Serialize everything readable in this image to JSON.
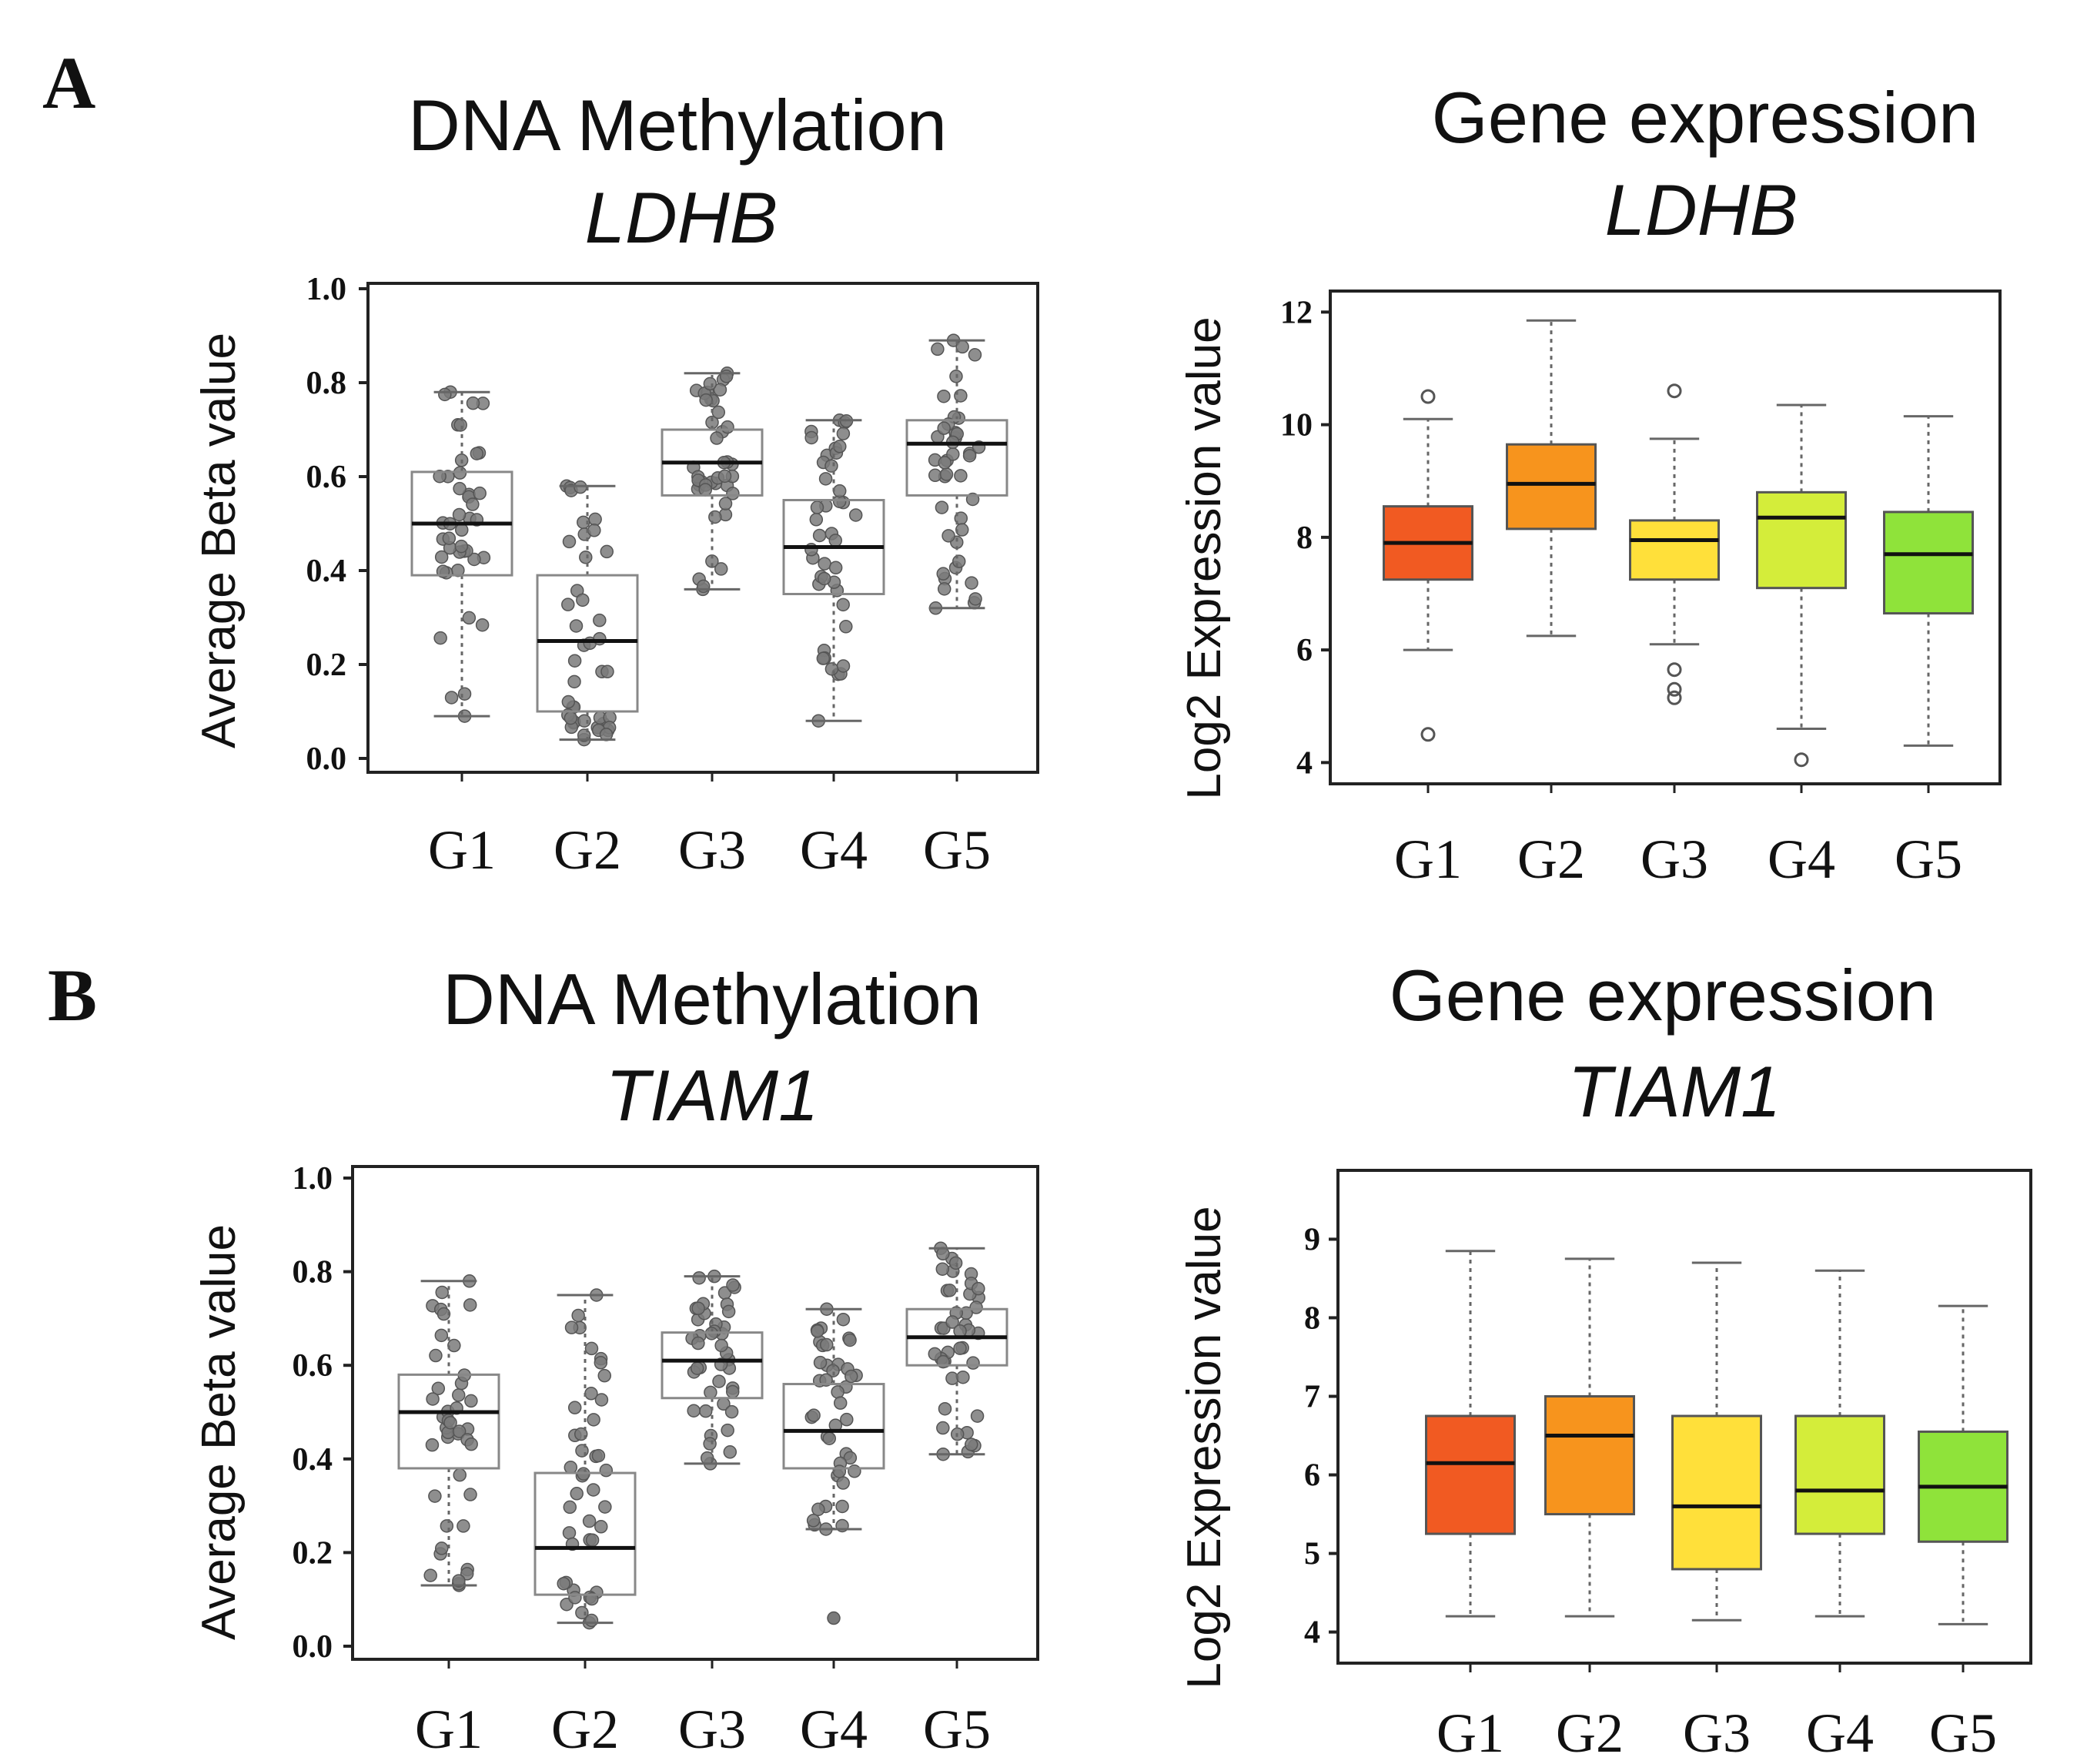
{
  "panels": {
    "A": {
      "letter": "A"
    },
    "B": {
      "letter": "B"
    }
  },
  "chart_data": [
    {
      "id": "A-meth",
      "type": "box",
      "title": "DNA Methylation",
      "gene": "LDHB",
      "ylabel": "Average Beta value",
      "xlabel": "",
      "ylim": [
        0.0,
        1.0
      ],
      "yticks": [
        "0.0",
        "0.2",
        "0.4",
        "0.6",
        "0.8",
        "1.0"
      ],
      "categories": [
        "G1",
        "G2",
        "G3",
        "G4",
        "G5"
      ],
      "jitter": true,
      "colors": [
        "#ffffff",
        "#ffffff",
        "#ffffff",
        "#ffffff",
        "#ffffff"
      ],
      "boxes": [
        {
          "group": "G1",
          "min": 0.09,
          "q1": 0.39,
          "median": 0.5,
          "q3": 0.61,
          "max": 0.78,
          "outliers": []
        },
        {
          "group": "G2",
          "min": 0.04,
          "q1": 0.1,
          "median": 0.25,
          "q3": 0.39,
          "max": 0.58,
          "outliers": []
        },
        {
          "group": "G3",
          "min": 0.36,
          "q1": 0.56,
          "median": 0.63,
          "q3": 0.7,
          "max": 0.82,
          "outliers": []
        },
        {
          "group": "G4",
          "min": 0.08,
          "q1": 0.35,
          "median": 0.45,
          "q3": 0.55,
          "max": 0.72,
          "outliers": []
        },
        {
          "group": "G5",
          "min": 0.32,
          "q1": 0.56,
          "median": 0.67,
          "q3": 0.72,
          "max": 0.89,
          "outliers": []
        }
      ]
    },
    {
      "id": "A-expr",
      "type": "box",
      "title": "Gene expression",
      "gene": "LDHB",
      "ylabel": "Log2 Expression value",
      "xlabel": "",
      "ylim": [
        3.8,
        12.1
      ],
      "yticks": [
        "4",
        "6",
        "8",
        "10",
        "12"
      ],
      "categories": [
        "G1",
        "G2",
        "G3",
        "G4",
        "G5"
      ],
      "jitter": false,
      "colors": [
        "#f15a22",
        "#f7941d",
        "#ffe03a",
        "#d4ed3a",
        "#8fe33a"
      ],
      "boxes": [
        {
          "group": "G1",
          "min": 6.0,
          "q1": 7.25,
          "median": 7.9,
          "q3": 8.55,
          "max": 10.1,
          "outliers": [
            10.5,
            4.5
          ]
        },
        {
          "group": "G2",
          "min": 6.25,
          "q1": 8.15,
          "median": 8.95,
          "q3": 9.65,
          "max": 11.85,
          "outliers": []
        },
        {
          "group": "G3",
          "min": 6.1,
          "q1": 7.25,
          "median": 7.95,
          "q3": 8.3,
          "max": 9.75,
          "outliers": [
            10.6,
            5.65,
            5.3,
            5.15
          ]
        },
        {
          "group": "G4",
          "min": 4.6,
          "q1": 7.1,
          "median": 8.35,
          "q3": 8.8,
          "max": 10.35,
          "outliers": [
            4.05
          ]
        },
        {
          "group": "G5",
          "min": 4.3,
          "q1": 6.65,
          "median": 7.7,
          "q3": 8.45,
          "max": 10.15,
          "outliers": []
        }
      ]
    },
    {
      "id": "B-meth",
      "type": "box",
      "title": "DNA Methylation",
      "gene": "TIAM1",
      "ylabel": "Average Beta value",
      "xlabel": "",
      "ylim": [
        0.0,
        1.0
      ],
      "yticks": [
        "0.0",
        "0.2",
        "0.4",
        "0.6",
        "0.8",
        "1.0"
      ],
      "categories": [
        "G1",
        "G2",
        "G3",
        "G4",
        "G5"
      ],
      "jitter": true,
      "colors": [
        "#ffffff",
        "#ffffff",
        "#ffffff",
        "#ffffff",
        "#ffffff"
      ],
      "boxes": [
        {
          "group": "G1",
          "min": 0.13,
          "q1": 0.38,
          "median": 0.5,
          "q3": 0.58,
          "max": 0.78,
          "outliers": []
        },
        {
          "group": "G2",
          "min": 0.05,
          "q1": 0.11,
          "median": 0.21,
          "q3": 0.37,
          "max": 0.75,
          "outliers": []
        },
        {
          "group": "G3",
          "min": 0.39,
          "q1": 0.53,
          "median": 0.61,
          "q3": 0.67,
          "max": 0.79,
          "outliers": []
        },
        {
          "group": "G4",
          "min": 0.25,
          "q1": 0.38,
          "median": 0.46,
          "q3": 0.56,
          "max": 0.72,
          "outliers": [
            0.06
          ]
        },
        {
          "group": "G5",
          "min": 0.41,
          "q1": 0.6,
          "median": 0.66,
          "q3": 0.72,
          "max": 0.85,
          "outliers": []
        }
      ]
    },
    {
      "id": "B-expr",
      "type": "box",
      "title": "Gene expression",
      "gene": "TIAM1",
      "ylabel": "Log2 Expression value",
      "xlabel": "",
      "ylim": [
        3.8,
        9.7
      ],
      "yticks": [
        "4",
        "5",
        "6",
        "7",
        "8",
        "9"
      ],
      "categories": [
        "G1",
        "G2",
        "G3",
        "G4",
        "G5"
      ],
      "jitter": false,
      "colors": [
        "#f15a22",
        "#f7941d",
        "#ffe03a",
        "#d4ed3a",
        "#8fe33a"
      ],
      "boxes": [
        {
          "group": "G1",
          "min": 4.2,
          "q1": 5.25,
          "median": 6.15,
          "q3": 6.75,
          "max": 8.85,
          "outliers": []
        },
        {
          "group": "G2",
          "min": 4.2,
          "q1": 5.5,
          "median": 6.5,
          "q3": 7.0,
          "max": 8.75,
          "outliers": []
        },
        {
          "group": "G3",
          "min": 4.15,
          "q1": 4.8,
          "median": 5.6,
          "q3": 6.75,
          "max": 8.7,
          "outliers": []
        },
        {
          "group": "G4",
          "min": 4.2,
          "q1": 5.25,
          "median": 5.8,
          "q3": 6.75,
          "max": 8.6,
          "outliers": []
        },
        {
          "group": "G5",
          "min": 4.1,
          "q1": 5.15,
          "median": 5.85,
          "q3": 6.55,
          "max": 8.15,
          "outliers": []
        }
      ]
    }
  ]
}
